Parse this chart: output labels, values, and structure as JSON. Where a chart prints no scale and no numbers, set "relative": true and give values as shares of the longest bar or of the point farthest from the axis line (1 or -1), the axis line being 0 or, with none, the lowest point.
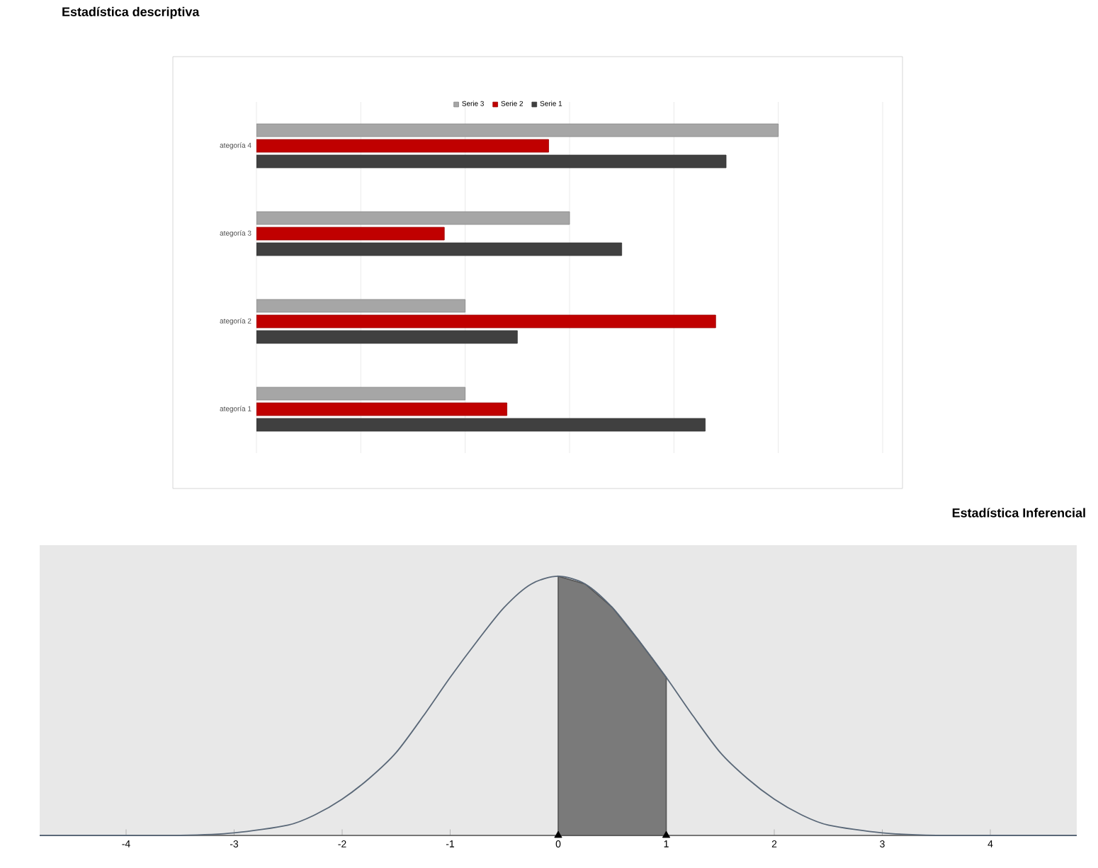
{
  "chart_data": [
    {
      "type": "bar",
      "orientation": "horizontal",
      "relative": true,
      "title": "Estadística descriptiva",
      "grid": "x",
      "legend": "top",
      "categories": [
        "ategoría 4",
        "ategoría 3",
        "ategoría 2",
        "ategoría 1"
      ],
      "series": [
        {
          "name": "Serie 3",
          "color": "#a6a6a6",
          "values": [
            1.0,
            0.6,
            0.4,
            0.4
          ]
        },
        {
          "name": "Serie 2",
          "color": "#c00000",
          "values": [
            0.56,
            0.36,
            0.88,
            0.48
          ]
        },
        {
          "name": "Serie 1",
          "color": "#404040",
          "values": [
            0.9,
            0.7,
            0.5,
            0.86
          ]
        }
      ]
    },
    {
      "type": "line",
      "relative": true,
      "title": "Estadística Inferencial",
      "xlim": [
        -4.8,
        4.8
      ],
      "xticks": [
        -4,
        -3,
        -2,
        -1,
        0,
        1,
        2,
        3,
        4
      ],
      "series": [
        {
          "type": "line",
          "color": "#5a6878",
          "x": [
            -4.8,
            -4,
            -3.5,
            -3,
            -2.5,
            -2.25,
            -2,
            -1.75,
            -1.5,
            -1.25,
            -1,
            -0.75,
            -0.5,
            -0.25,
            0,
            0.25,
            0.5,
            0.75,
            1,
            1.25,
            1.5,
            1.75,
            2,
            2.25,
            2.5,
            3,
            3.5,
            4,
            4.8
          ],
          "values": [
            0,
            0,
            0,
            0.01,
            0.04,
            0.08,
            0.14,
            0.22,
            0.32,
            0.46,
            0.61,
            0.75,
            0.88,
            0.97,
            1,
            0.97,
            0.88,
            0.75,
            0.61,
            0.46,
            0.32,
            0.22,
            0.14,
            0.08,
            0.04,
            0.01,
            0,
            0,
            0
          ]
        },
        {
          "type": "area",
          "color": "#7a7a7a",
          "x": [
            0,
            0.25,
            0.5,
            0.75,
            1
          ],
          "values": [
            1,
            0.97,
            0.88,
            0.75,
            0.61
          ]
        },
        {
          "type": "scatter",
          "color": "#000000",
          "marker": "triangle",
          "x": [
            0,
            1
          ],
          "values": [
            0,
            0
          ]
        }
      ]
    }
  ]
}
